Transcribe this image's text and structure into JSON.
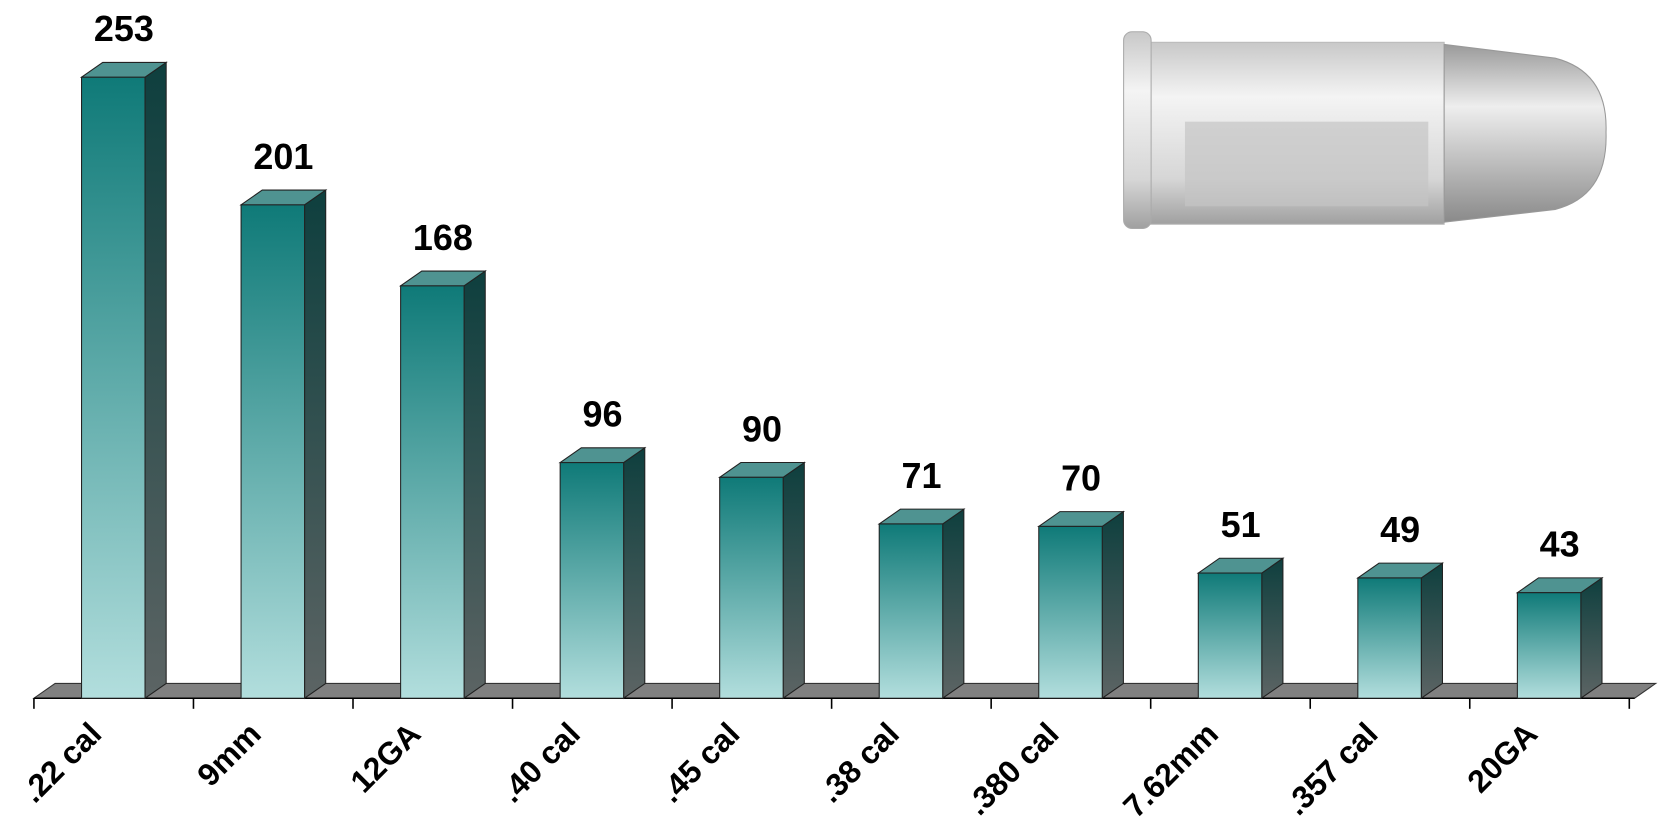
{
  "chart_data": {
    "type": "bar3d",
    "categories": [
      ".22 cal",
      "9mm",
      "12GA",
      ".40 cal",
      ".45 cal",
      ".38 cal",
      ".380 cal",
      "7.62mm",
      ".357 cal",
      "20GA"
    ],
    "values": [
      253,
      201,
      168,
      96,
      90,
      71,
      70,
      51,
      49,
      43
    ],
    "color": "#0f7a78"
  }
}
